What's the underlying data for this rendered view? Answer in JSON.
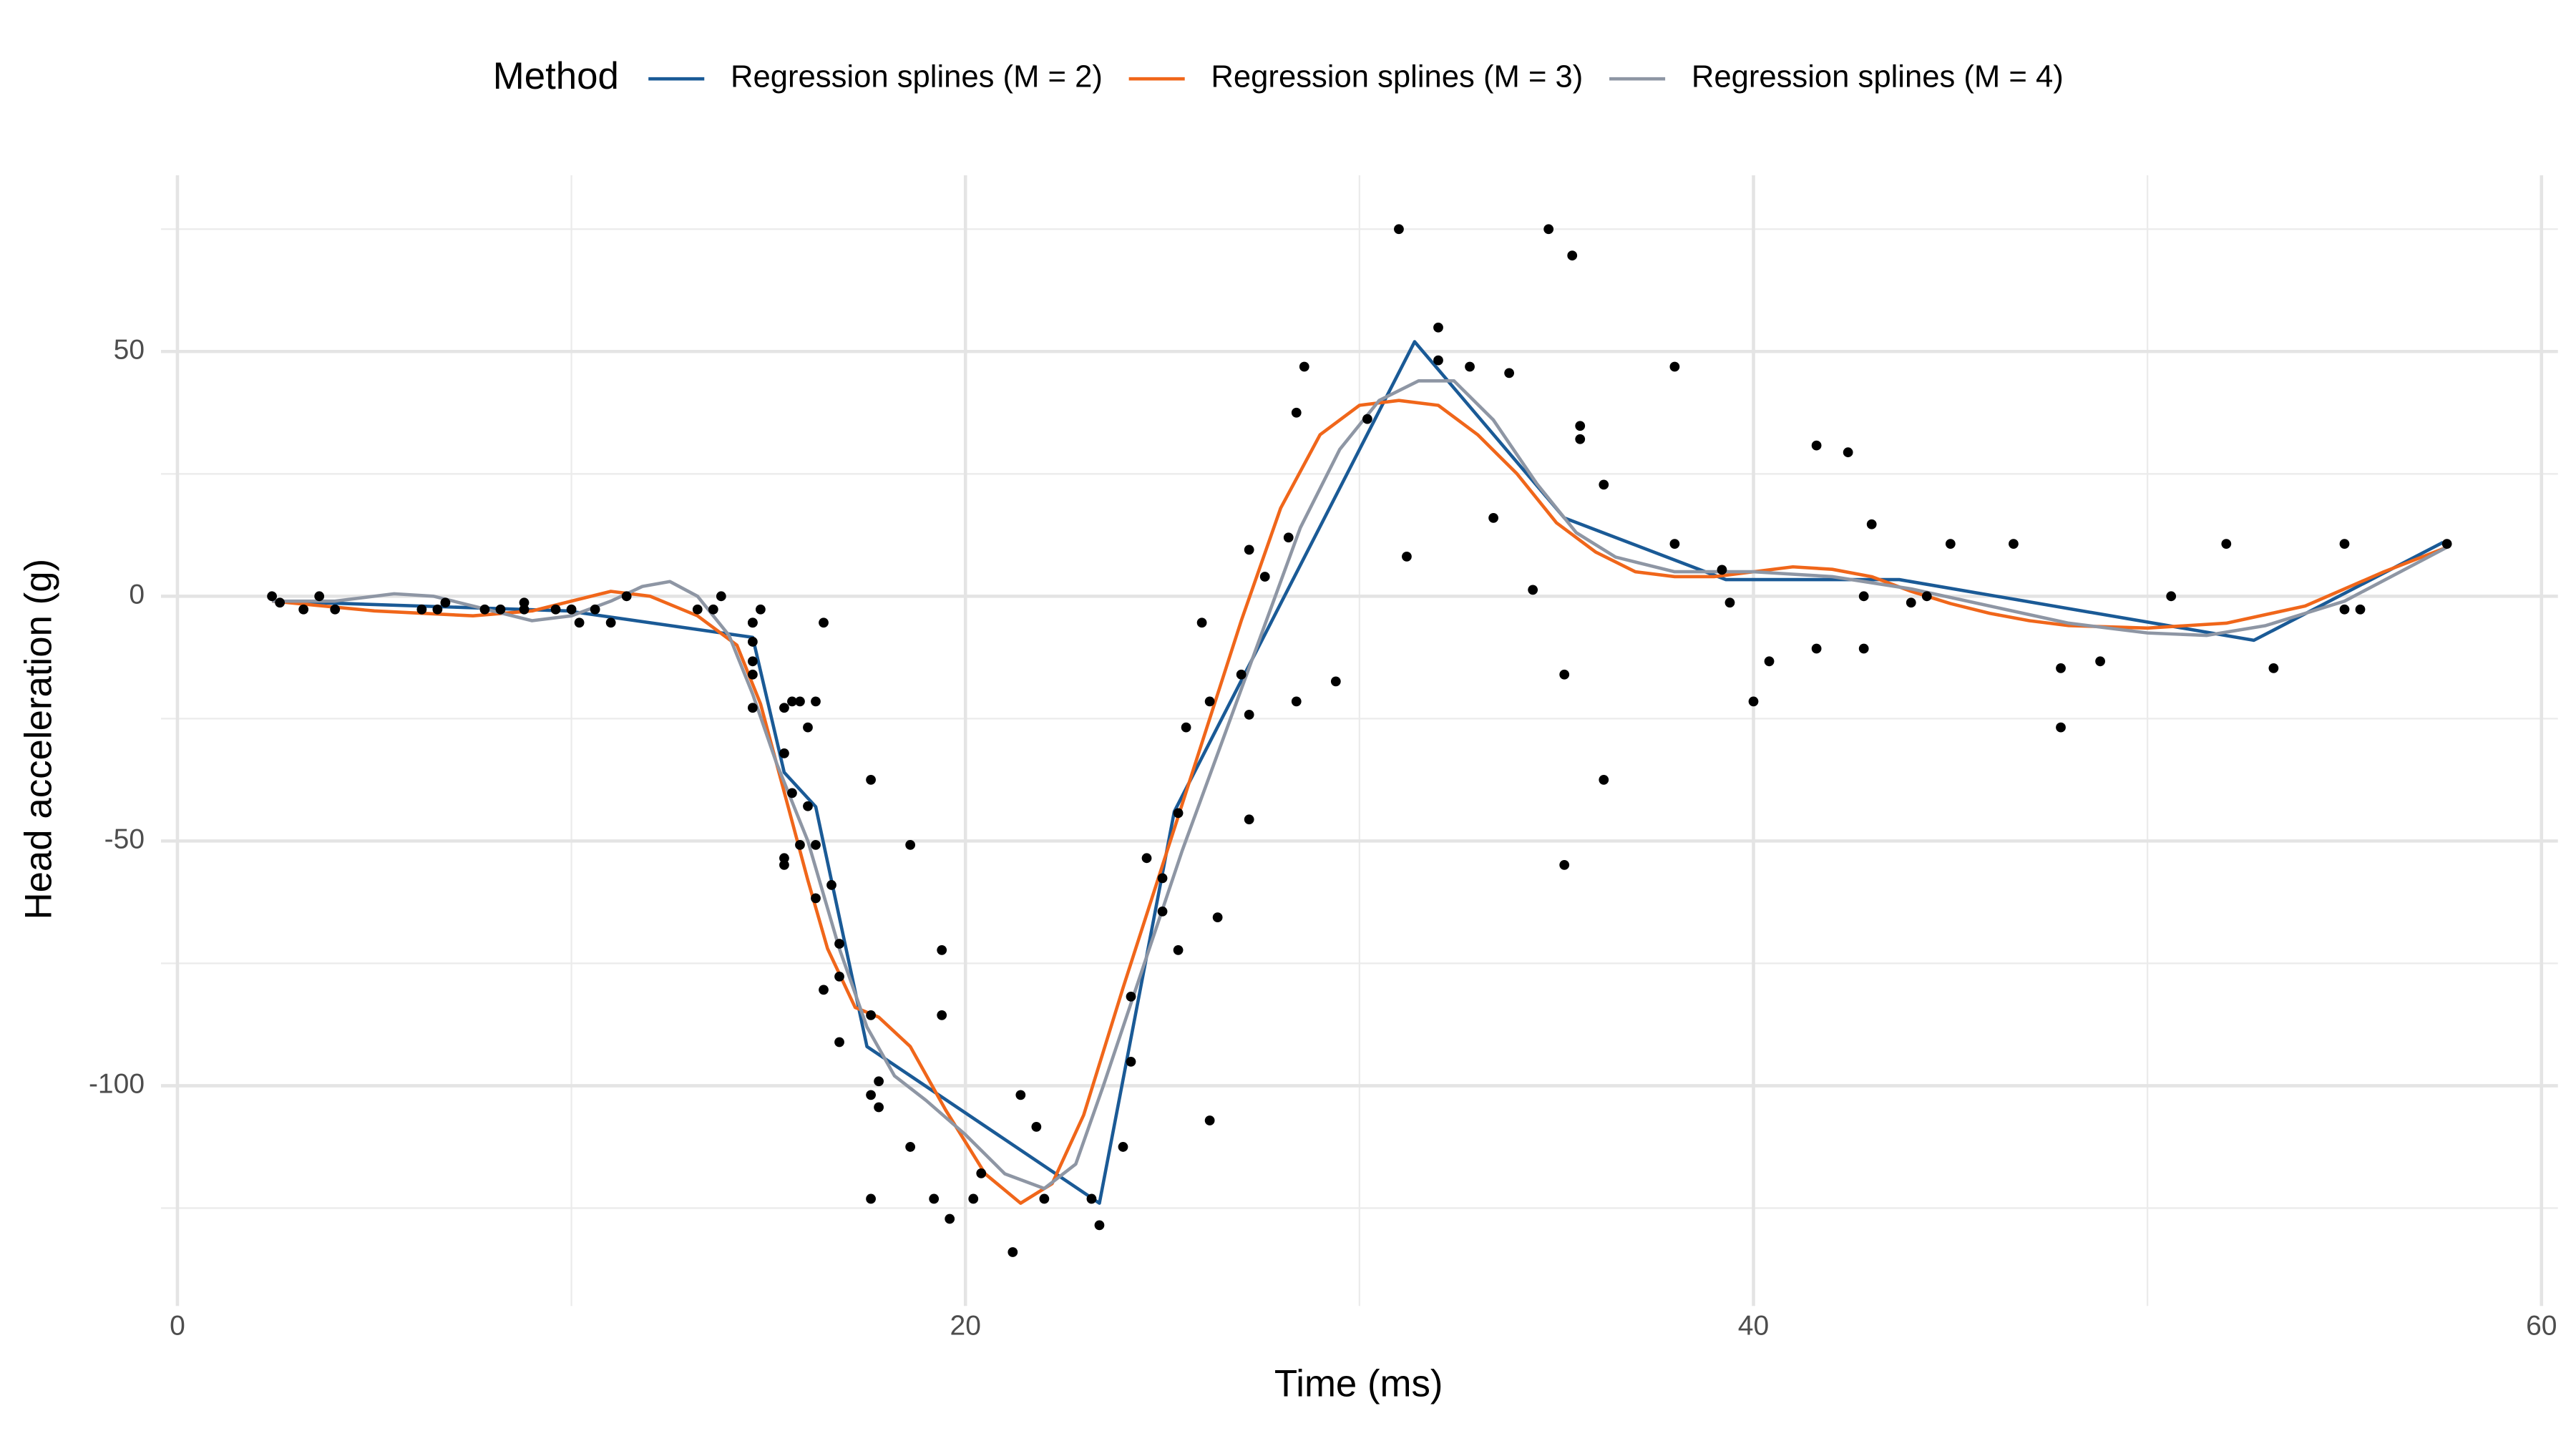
{
  "chart_data": {
    "type": "scatter",
    "legend_title": "Method",
    "legend": "top",
    "xlabel": "Time (ms)",
    "ylabel": "Head acceleration (g)",
    "xlim": [
      0,
      60
    ],
    "ylim": [
      -145,
      86
    ],
    "xticks": [
      0,
      20,
      40,
      60
    ],
    "yticks": [
      -100,
      -50,
      0,
      50
    ],
    "xminor": [
      10,
      30,
      50
    ],
    "yminor": [
      -125,
      -75,
      -25,
      25,
      75
    ],
    "grid": true,
    "point_color": "#000000",
    "x": [
      2.4,
      2.6,
      3.2,
      3.6,
      4.0,
      6.2,
      6.6,
      6.8,
      7.8,
      8.2,
      8.8,
      8.8,
      9.6,
      10.0,
      10.2,
      10.6,
      11.0,
      11.4,
      13.2,
      13.6,
      13.8,
      14.6,
      14.6,
      14.6,
      14.6,
      14.6,
      14.6,
      14.8,
      15.4,
      15.4,
      15.4,
      15.4,
      15.6,
      15.6,
      15.8,
      15.8,
      16.0,
      16.0,
      16.2,
      16.2,
      16.2,
      16.4,
      16.4,
      16.6,
      16.8,
      16.8,
      16.8,
      17.6,
      17.6,
      17.6,
      17.6,
      17.8,
      17.8,
      18.6,
      18.6,
      19.2,
      19.4,
      19.4,
      19.6,
      20.2,
      20.4,
      21.2,
      21.4,
      21.8,
      22.0,
      23.2,
      23.4,
      24.0,
      24.2,
      24.2,
      24.6,
      25.0,
      25.0,
      25.4,
      25.4,
      25.6,
      26.0,
      26.2,
      26.2,
      26.4,
      27.0,
      27.2,
      27.2,
      27.2,
      27.6,
      28.2,
      28.4,
      28.4,
      28.6,
      29.4,
      30.2,
      31.0,
      31.2,
      32.0,
      32.0,
      32.8,
      33.4,
      33.8,
      34.4,
      34.8,
      35.2,
      35.2,
      35.4,
      35.6,
      35.6,
      36.2,
      36.2,
      38.0,
      38.0,
      39.2,
      39.4,
      40.0,
      40.4,
      41.6,
      41.6,
      42.4,
      42.8,
      42.8,
      43.0,
      44.0,
      44.4,
      45.0,
      46.6,
      47.8,
      47.8,
      48.8,
      50.6,
      52.0,
      53.2,
      55.0,
      55.0,
      55.4,
      57.6
    ],
    "values": [
      0.0,
      -1.3,
      -2.7,
      0.0,
      -2.7,
      -2.7,
      -2.7,
      -1.3,
      -2.7,
      -2.7,
      -1.3,
      -2.7,
      -2.7,
      -2.7,
      -5.4,
      -2.7,
      -5.4,
      0.0,
      -2.7,
      -2.7,
      0.0,
      -13.3,
      -5.4,
      -5.4,
      -9.3,
      -16.0,
      -22.8,
      -2.7,
      -22.8,
      -32.1,
      -53.5,
      -54.9,
      -40.2,
      -21.5,
      -21.5,
      -50.8,
      -42.9,
      -26.8,
      -21.5,
      -50.8,
      -61.7,
      -5.4,
      -80.4,
      -59.0,
      -71.0,
      -91.1,
      -77.7,
      -37.5,
      -85.6,
      -123.1,
      -101.9,
      -99.1,
      -104.4,
      -112.5,
      -50.8,
      -123.1,
      -85.6,
      -72.3,
      -127.2,
      -123.1,
      -117.9,
      -134.0,
      -101.9,
      -108.4,
      -123.1,
      -123.1,
      -128.5,
      -112.5,
      -95.1,
      -81.8,
      -53.5,
      -64.4,
      -57.6,
      -72.3,
      -44.3,
      -26.8,
      -5.4,
      -107.1,
      -21.5,
      -65.6,
      -16.0,
      -45.6,
      -24.2,
      9.5,
      4.0,
      12.0,
      -21.5,
      37.5,
      46.9,
      -17.4,
      36.2,
      75.0,
      8.1,
      54.9,
      48.2,
      46.9,
      16.0,
      45.6,
      1.3,
      75.0,
      -16.0,
      -54.9,
      69.6,
      34.8,
      32.1,
      -37.5,
      22.8,
      46.9,
      10.7,
      5.4,
      -1.3,
      -21.5,
      -13.3,
      30.8,
      -10.7,
      29.4,
      0.0,
      -10.7,
      14.7,
      -1.3,
      0.0,
      10.7,
      10.7,
      -26.8,
      -14.7,
      -13.3,
      0.0,
      10.7,
      -14.7,
      -2.7,
      10.7,
      -2.7,
      10.7
    ],
    "series": [
      {
        "name": "Regression splines (M = 2)",
        "color": "#1a5a96",
        "x": [
          2.4,
          9.9,
          14.6,
          15.4,
          16.2,
          17.5,
          23.4,
          25.3,
          31.4,
          35.2,
          39.3,
          43.7,
          52.7,
          57.5
        ],
        "values": [
          -1,
          -3,
          -8.4,
          -36,
          -43,
          -92,
          -124,
          -44,
          52,
          16,
          3.4,
          3.4,
          -9,
          11
        ]
      },
      {
        "name": "Regression splines (M = 3)",
        "color": "#f0661a",
        "x": [
          2.4,
          5,
          7.5,
          9,
          10,
          11,
          12,
          13.2,
          14.2,
          14.8,
          15.4,
          16,
          16.5,
          17.2,
          17.8,
          18.6,
          19.5,
          20.5,
          21.4,
          22.2,
          23,
          24,
          25,
          26,
          27,
          28,
          29,
          30,
          31,
          32,
          33,
          34,
          35,
          36,
          37,
          38,
          39,
          40,
          41,
          42,
          43,
          44,
          45,
          46,
          47,
          48,
          50,
          52,
          54,
          56,
          57.6
        ],
        "values": [
          -1,
          -3,
          -4,
          -3,
          -1,
          1,
          0,
          -4,
          -10,
          -22,
          -40,
          -58,
          -72,
          -84,
          -86,
          -92,
          -105,
          -118,
          -124,
          -120,
          -106,
          -80,
          -55,
          -30,
          -5,
          18,
          33,
          39,
          40,
          39,
          33,
          25,
          15,
          9,
          5,
          4,
          4,
          5,
          6,
          5.5,
          4,
          1,
          -1.5,
          -3.5,
          -5,
          -6,
          -6.5,
          -5.5,
          -2,
          5,
          10
        ]
      },
      {
        "name": "Regression splines (M = 4)",
        "color": "#8e96a4",
        "x": [
          2.4,
          4,
          5.5,
          6.5,
          7.5,
          9,
          10,
          11,
          11.8,
          12.5,
          13.2,
          14,
          14.6,
          15.2,
          16,
          16.8,
          17.5,
          18.2,
          19,
          20,
          21,
          22,
          22.8,
          23.5,
          24.5,
          25.5,
          26.5,
          27.5,
          28.5,
          29.5,
          30.5,
          31.5,
          32.4,
          33.4,
          34.5,
          35.5,
          36.5,
          38,
          40,
          42,
          44,
          46,
          48,
          50,
          51.5,
          53,
          55,
          57.6
        ],
        "values": [
          -1,
          -1,
          0.5,
          0,
          -2,
          -5,
          -4,
          -1,
          2,
          3,
          0,
          -8,
          -20,
          -34,
          -50,
          -72,
          -88,
          -98,
          -103,
          -110,
          -118,
          -121,
          -116,
          -100,
          -76,
          -52,
          -30,
          -8,
          14,
          30,
          40,
          44,
          44,
          36,
          23,
          13,
          8,
          5,
          5,
          4,
          1.5,
          -2,
          -5.5,
          -7.5,
          -8,
          -6,
          -1,
          10
        ]
      }
    ]
  }
}
